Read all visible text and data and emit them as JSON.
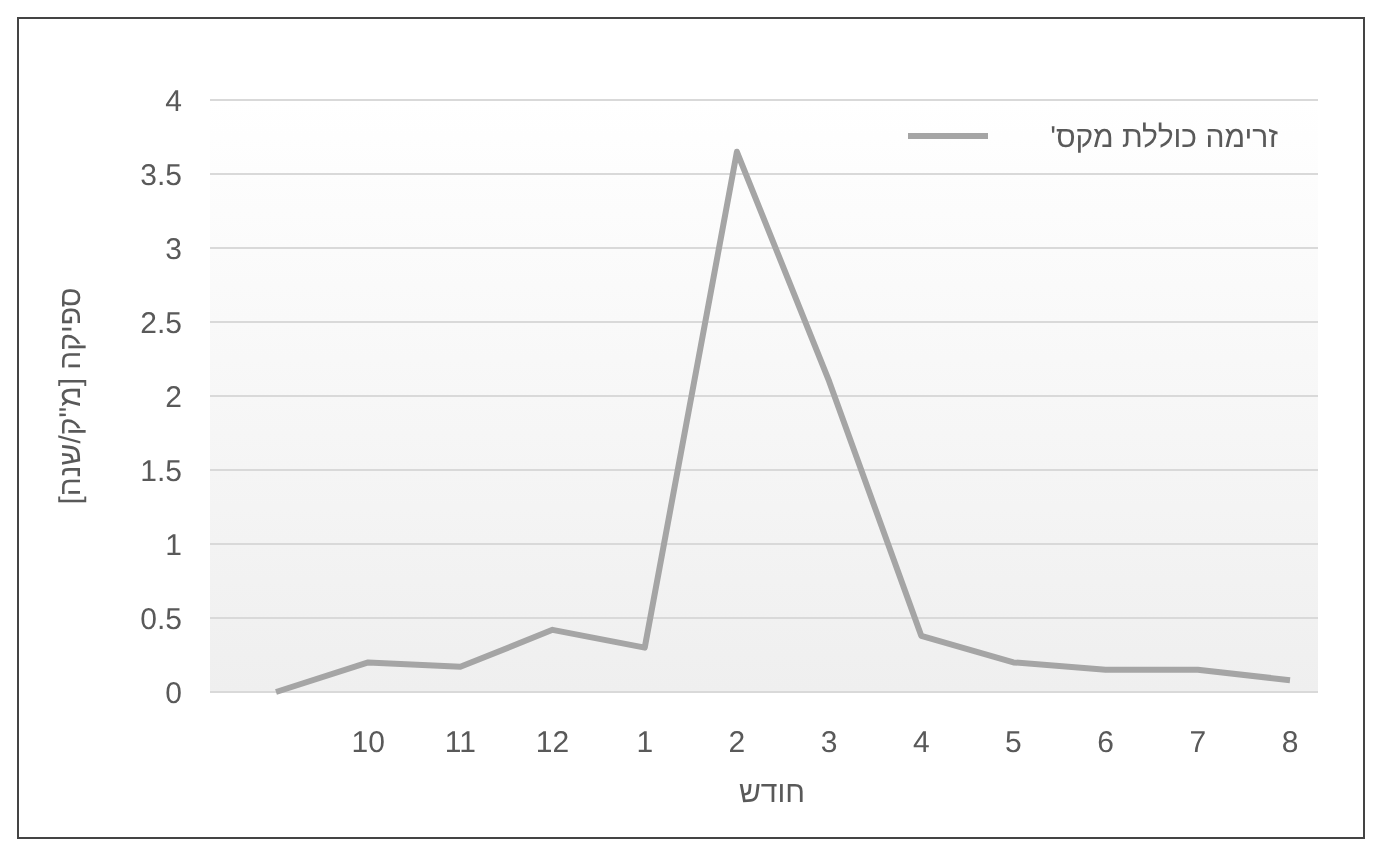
{
  "chart_data": {
    "type": "line",
    "xlabel": "חודש",
    "ylabel": "ספיקה [מ\"ק/שנה]",
    "categories": [
      null,
      "10",
      "11",
      "12",
      "1",
      "2",
      "3",
      "4",
      "5",
      "6",
      "7",
      "8"
    ],
    "series": [
      {
        "name": "זרימה כוללת מקס'",
        "color": "#a5a5a5",
        "values": [
          0,
          0.2,
          0.17,
          0.42,
          0.3,
          3.65,
          2.1,
          0.38,
          0.2,
          0.15,
          0.15,
          0.08
        ]
      }
    ],
    "ylim": [
      0,
      4
    ],
    "yticks": [
      0,
      0.5,
      1,
      1.5,
      2,
      2.5,
      3,
      3.5,
      4
    ],
    "grid": "y",
    "legend": "top right",
    "marker": "none",
    "line_style": "solid"
  }
}
